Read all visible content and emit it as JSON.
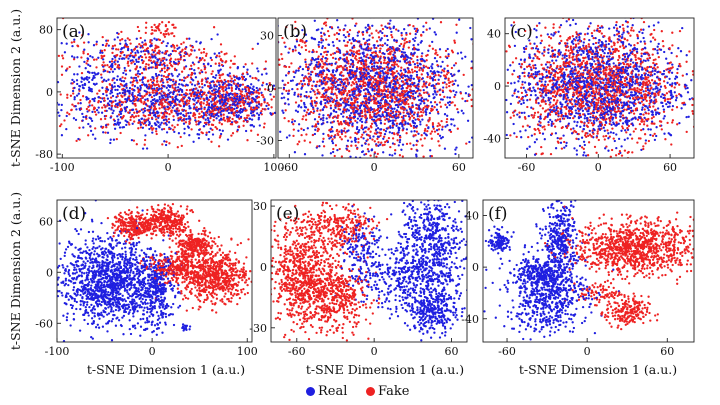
{
  "figure": {
    "x_label": "t-SNE Dimension 1 (a.u.)",
    "y_label": "t-SNE Dimension 2 (a.u.)"
  },
  "colors": {
    "real": "#1f1fe0",
    "fake": "#ee2222"
  },
  "legend": [
    {
      "label": "Real",
      "series": "real"
    },
    {
      "label": "Fake",
      "series": "fake"
    }
  ],
  "chart_data": [
    {
      "type": "scatter",
      "panel_label": "(a)",
      "xlim": [
        -105,
        102
      ],
      "ylim": [
        -85,
        95
      ],
      "xticks": [
        -100,
        0,
        100
      ],
      "yticks": [
        -80,
        0,
        80
      ],
      "series": [
        {
          "name": "Real",
          "color_key": "real",
          "points_approx": 1500,
          "clusters": [
            {
              "cx": -5,
              "cy": -15,
              "sx": 48,
              "sy": 22,
              "n": 650
            },
            {
              "cx": 60,
              "cy": -10,
              "sx": 18,
              "sy": 18,
              "n": 250
            },
            {
              "cx": -20,
              "cy": 45,
              "sx": 40,
              "sy": 14,
              "n": 200
            },
            {
              "cx": -70,
              "cy": 10,
              "sx": 15,
              "sy": 15,
              "n": 80
            }
          ]
        },
        {
          "name": "Fake",
          "color_key": "fake",
          "points_approx": 1500,
          "clusters": [
            {
              "cx": -5,
              "cy": -15,
              "sx": 48,
              "sy": 22,
              "n": 600
            },
            {
              "cx": 60,
              "cy": -10,
              "sx": 18,
              "sy": 18,
              "n": 230
            },
            {
              "cx": -20,
              "cy": 45,
              "sx": 40,
              "sy": 14,
              "n": 260
            },
            {
              "cx": -10,
              "cy": 80,
              "sx": 10,
              "sy": 5,
              "n": 40
            }
          ]
        }
      ]
    },
    {
      "type": "scatter",
      "panel_label": "(b)",
      "xlim": [
        -68,
        70
      ],
      "ylim": [
        -40,
        40
      ],
      "xticks": [
        -60,
        0,
        60
      ],
      "yticks": [
        -30,
        0,
        30
      ],
      "series": [
        {
          "name": "Real",
          "color_key": "real",
          "points_approx": 1400,
          "clusters": [
            {
              "cx": 0,
              "cy": 0,
              "sx": 30,
              "sy": 18,
              "n": 1400
            }
          ]
        },
        {
          "name": "Fake",
          "color_key": "fake",
          "points_approx": 1400,
          "clusters": [
            {
              "cx": 0,
              "cy": 0,
              "sx": 30,
              "sy": 18,
              "n": 1400
            }
          ]
        }
      ]
    },
    {
      "type": "scatter",
      "panel_label": "(c)",
      "xlim": [
        -78,
        80
      ],
      "ylim": [
        -55,
        52
      ],
      "xticks": [
        -60,
        0,
        60
      ],
      "yticks": [
        -40,
        0,
        40
      ],
      "series": [
        {
          "name": "Real",
          "color_key": "real",
          "points_approx": 1400,
          "clusters": [
            {
              "cx": 0,
              "cy": 0,
              "sx": 35,
              "sy": 22,
              "n": 1400
            }
          ]
        },
        {
          "name": "Fake",
          "color_key": "fake",
          "points_approx": 1400,
          "clusters": [
            {
              "cx": 0,
              "cy": 0,
              "sx": 35,
              "sy": 22,
              "n": 1400
            }
          ]
        }
      ]
    },
    {
      "type": "scatter",
      "panel_label": "(d)",
      "xlim": [
        -100,
        105
      ],
      "ylim": [
        -82,
        85
      ],
      "xticks": [
        -100,
        0,
        100
      ],
      "yticks": [
        -60,
        0,
        60
      ],
      "series": [
        {
          "name": "Real",
          "color_key": "real",
          "points_approx": 1800,
          "clusters": [
            {
              "cx": -45,
              "cy": -10,
              "sx": 25,
              "sy": 25,
              "n": 1300
            },
            {
              "cx": 5,
              "cy": -25,
              "sx": 10,
              "sy": 20,
              "n": 300
            },
            {
              "cx": 35,
              "cy": -65,
              "sx": 2,
              "sy": 2,
              "n": 15
            }
          ]
        },
        {
          "name": "Fake",
          "color_key": "fake",
          "points_approx": 1800,
          "clusters": [
            {
              "cx": -20,
              "cy": 55,
              "sx": 10,
              "sy": 8,
              "n": 250
            },
            {
              "cx": 15,
              "cy": 60,
              "sx": 11,
              "sy": 8,
              "n": 300
            },
            {
              "cx": 45,
              "cy": 32,
              "sx": 10,
              "sy": 7,
              "n": 250
            },
            {
              "cx": 65,
              "cy": -5,
              "sx": 18,
              "sy": 15,
              "n": 650
            },
            {
              "cx": 25,
              "cy": 5,
              "sx": 15,
              "sy": 8,
              "n": 250
            }
          ]
        }
      ]
    },
    {
      "type": "scatter",
      "panel_label": "(e)",
      "xlim": [
        -80,
        72
      ],
      "ylim": [
        -37,
        33
      ],
      "xticks": [
        -60,
        0,
        60
      ],
      "yticks": [
        -30,
        0,
        30
      ],
      "series": [
        {
          "name": "Real",
          "color_key": "real",
          "points_approx": 1400,
          "clusters": [
            {
              "cx": 45,
              "cy": 15,
              "sx": 12,
              "sy": 10,
              "n": 450
            },
            {
              "cx": 30,
              "cy": -5,
              "sx": 20,
              "sy": 8,
              "n": 450
            },
            {
              "cx": 45,
              "cy": -22,
              "sx": 10,
              "sy": 6,
              "n": 300
            },
            {
              "cx": -10,
              "cy": 10,
              "sx": 8,
              "sy": 8,
              "n": 150
            }
          ]
        },
        {
          "name": "Fake",
          "color_key": "fake",
          "points_approx": 1400,
          "clusters": [
            {
              "cx": -55,
              "cy": -5,
              "sx": 12,
              "sy": 12,
              "n": 700
            },
            {
              "cx": -30,
              "cy": -15,
              "sx": 12,
              "sy": 8,
              "n": 400
            },
            {
              "cx": -30,
              "cy": 20,
              "sx": 15,
              "sy": 6,
              "n": 300
            }
          ]
        }
      ]
    },
    {
      "type": "scatter",
      "panel_label": "(f)",
      "xlim": [
        -78,
        80
      ],
      "ylim": [
        -58,
        52
      ],
      "xticks": [
        -60,
        0,
        60
      ],
      "yticks": [
        -40,
        0,
        40
      ],
      "series": [
        {
          "name": "Real",
          "color_key": "real",
          "points_approx": 1300,
          "clusters": [
            {
              "cx": -65,
              "cy": 20,
              "sx": 4,
              "sy": 4,
              "n": 120
            },
            {
              "cx": -20,
              "cy": 20,
              "sx": 6,
              "sy": 15,
              "n": 350
            },
            {
              "cx": -30,
              "cy": -20,
              "sx": 15,
              "sy": 15,
              "n": 650
            },
            {
              "cx": -35,
              "cy": -5,
              "sx": 8,
              "sy": 5,
              "n": 150
            }
          ]
        },
        {
          "name": "Fake",
          "color_key": "fake",
          "points_approx": 1300,
          "clusters": [
            {
              "cx": 35,
              "cy": 15,
              "sx": 22,
              "sy": 10,
              "n": 1000
            },
            {
              "cx": 30,
              "cy": -35,
              "sx": 8,
              "sy": 6,
              "n": 200
            },
            {
              "cx": 10,
              "cy": -20,
              "sx": 8,
              "sy": 4,
              "n": 80
            }
          ]
        }
      ]
    }
  ]
}
